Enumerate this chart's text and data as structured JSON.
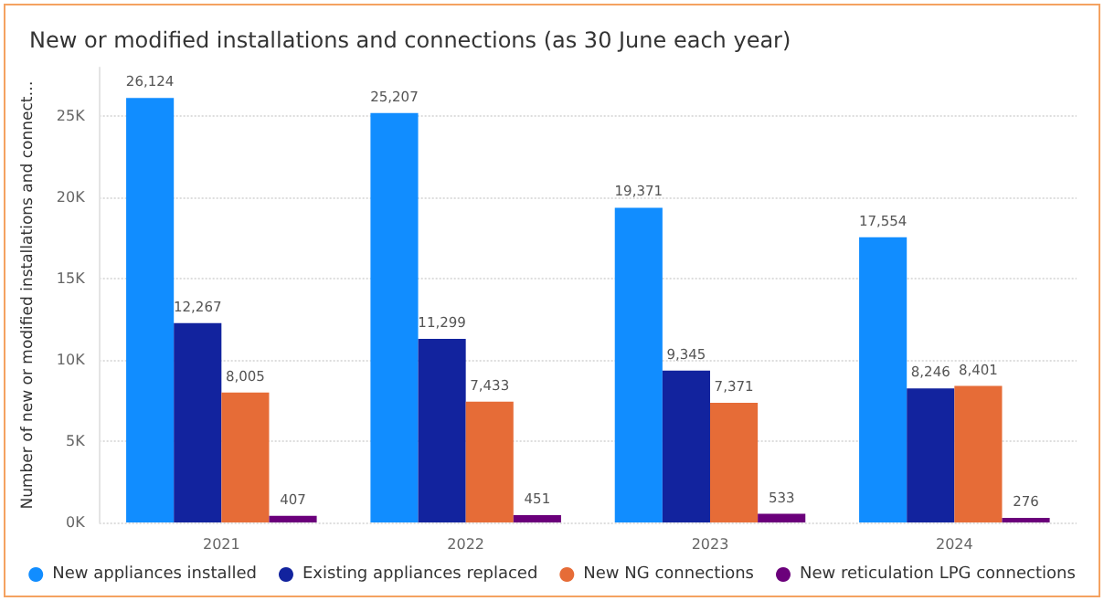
{
  "chart_data": {
    "type": "bar",
    "title": "New or modified installations and connections (as 30 June each year)",
    "ylabel": "Number of new or modified installations and connect…",
    "categories": [
      "2021",
      "2022",
      "2023",
      "2024"
    ],
    "series": [
      {
        "name": "New appliances installed",
        "color": "#118dff",
        "values": [
          26124,
          25207,
          19371,
          17554
        ],
        "value_labels": [
          "26,124",
          "25,207",
          "19,371",
          "17,554"
        ]
      },
      {
        "name": "Existing appliances replaced",
        "color": "#12239e",
        "values": [
          12267,
          11299,
          9345,
          8246
        ],
        "value_labels": [
          "12,267",
          "11,299",
          "9,345",
          "8,246"
        ]
      },
      {
        "name": "New NG connections",
        "color": "#e66c37",
        "values": [
          8005,
          7433,
          7371,
          8401
        ],
        "value_labels": [
          "8,005",
          "7,433",
          "7,371",
          "8,401"
        ]
      },
      {
        "name": "New reticulation LPG connections",
        "color": "#6b007b",
        "values": [
          407,
          451,
          533,
          276
        ],
        "value_labels": [
          "407",
          "451",
          "533",
          "276"
        ]
      }
    ],
    "ylim": [
      0,
      28000
    ],
    "yticks": [
      {
        "value": 0,
        "label": "0K"
      },
      {
        "value": 5000,
        "label": "5K"
      },
      {
        "value": 10000,
        "label": "10K"
      },
      {
        "value": 15000,
        "label": "15K"
      },
      {
        "value": 20000,
        "label": "20K"
      },
      {
        "value": 25000,
        "label": "25K"
      }
    ],
    "grid": "y",
    "legend": "bottom",
    "marker": "circle"
  }
}
